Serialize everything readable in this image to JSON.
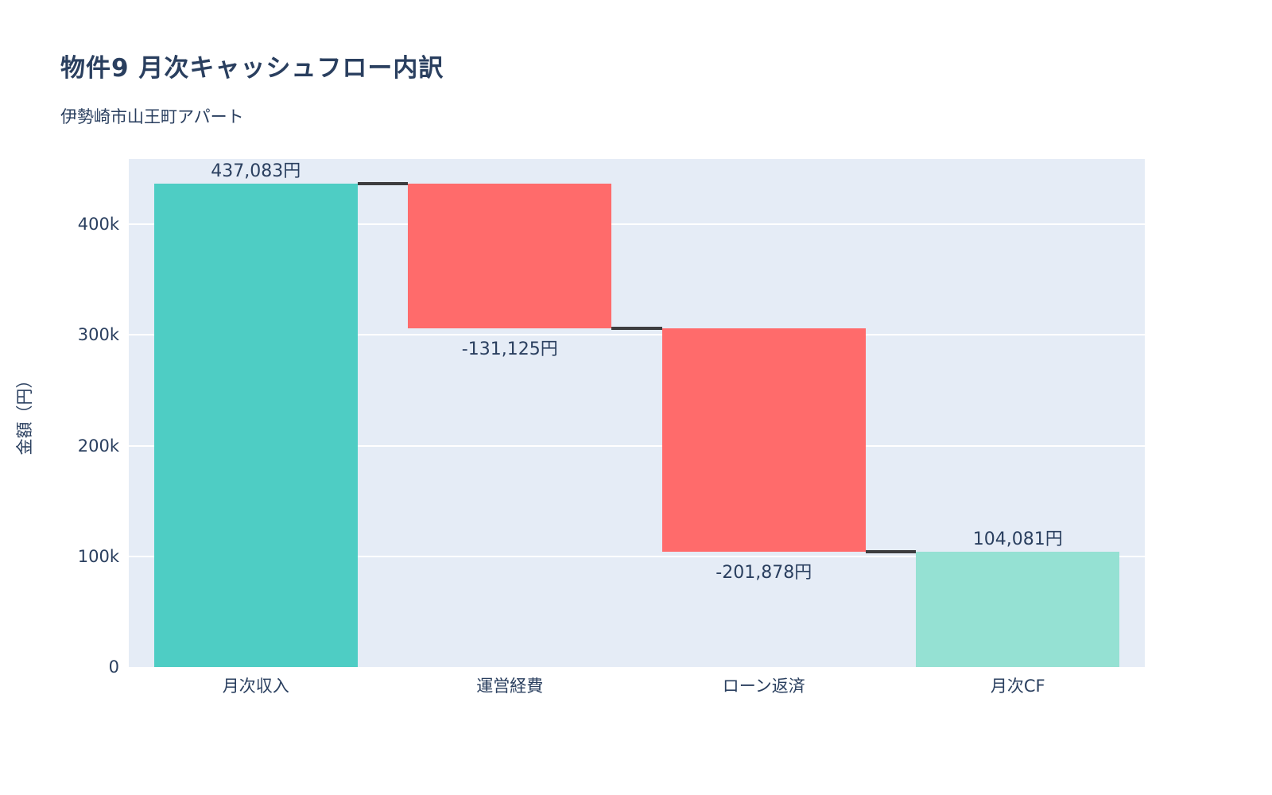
{
  "chart_data": {
    "type": "waterfall",
    "title": "物件9 月次キャッシュフロー内訳",
    "subtitle": "伊勢崎市山王町アパート",
    "ylabel": "金額（円）",
    "categories": [
      "月次収入",
      "運営経費",
      "ローン返済",
      "月次CF"
    ],
    "measures": [
      "relative",
      "relative",
      "relative",
      "total"
    ],
    "values": [
      437083,
      -131125,
      -201878,
      104081
    ],
    "value_labels": [
      "437,083円",
      "-131,125円",
      "-201,878円",
      "104,081円"
    ],
    "ylim": [
      0,
      459000
    ],
    "yticks": [
      0,
      100000,
      200000,
      300000,
      400000
    ],
    "ytick_labels": [
      "0",
      "100k",
      "200k",
      "300k",
      "400k"
    ],
    "grid": true,
    "legend_position": "none",
    "colors": {
      "increasing": "#4ECDC4",
      "decreasing": "#FF6B6B",
      "total": "#95E1D3",
      "connector": "#3D3D3F",
      "plot_background": "#E5ECF6",
      "gridline": "#FFFFFF",
      "text": "#2a3f5f"
    },
    "bar_width_fraction": 0.8
  }
}
